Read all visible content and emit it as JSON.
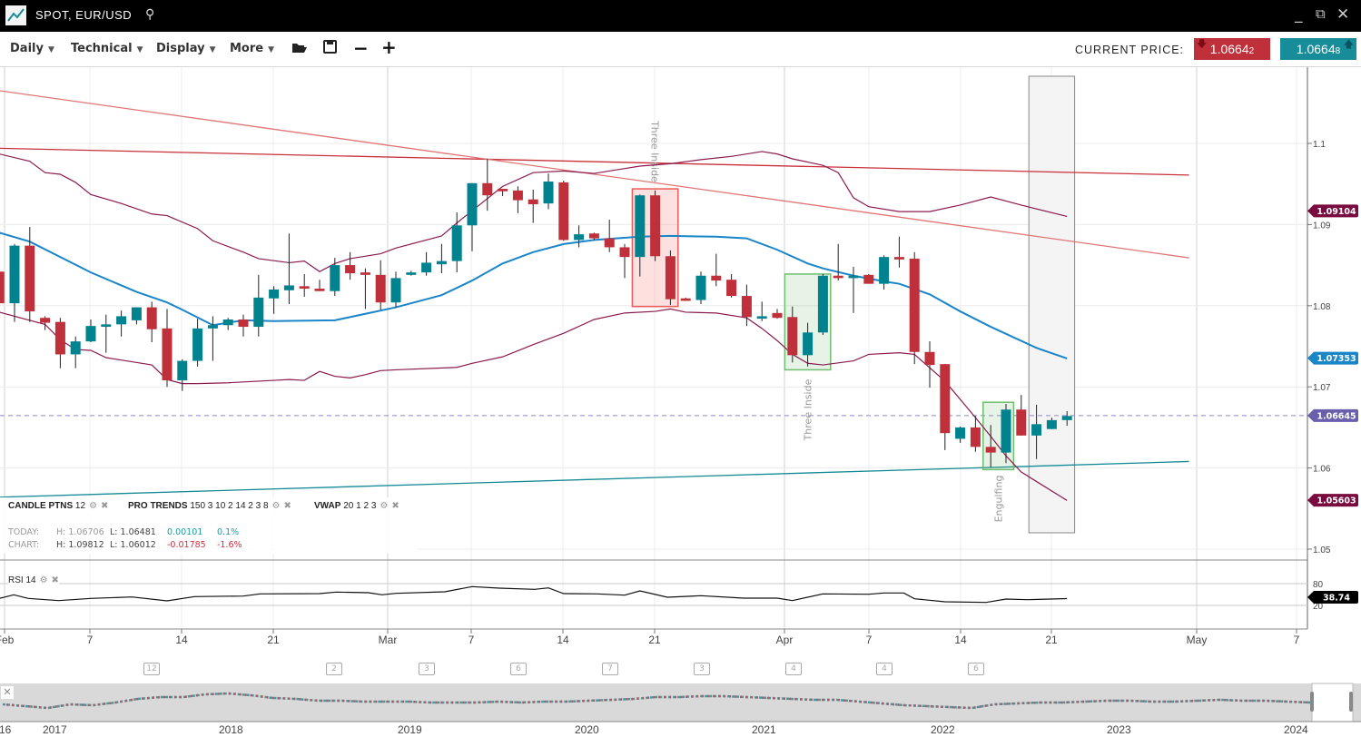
{
  "window": {
    "title": "SPOT, EUR/USD",
    "search_icon": "search-icon",
    "minimize": "_",
    "popout_icon": "popout-icon",
    "close": "✕"
  },
  "toolbar": {
    "menus": [
      "Daily",
      "Technical",
      "Display",
      "More"
    ],
    "icons": [
      "folder-open-icon",
      "save-icon",
      "zoom-out-icon",
      "zoom-in-icon"
    ],
    "current_price_label": "CURRENT PRICE:",
    "bid": "1.0664",
    "bid_pip": "2",
    "ask": "1.0664",
    "ask_pip": "8",
    "bid_color": "#c0303a",
    "ask_color": "#168d99"
  },
  "indicators": {
    "candle": {
      "name": "CANDLE PTNS",
      "params": "12"
    },
    "pro": {
      "name": "PRO TRENDS",
      "params": "150 3 10 2 14 2 3 8"
    },
    "vwap": {
      "name": "VWAP",
      "params": "20 1 2 3"
    },
    "rsi": {
      "name": "RSI",
      "params": "14"
    }
  },
  "stats": {
    "today": {
      "label": "TODAY:",
      "h": "H: 1.06706",
      "l": "L: 1.06481",
      "chg": "0.00101",
      "pct": "0.1%"
    },
    "chart": {
      "label": "CHART:",
      "h": "H: 1.09812",
      "l": "L: 1.06012",
      "chg": "-0.01785",
      "pct": "-1.6%"
    }
  },
  "chart_data": {
    "type": "candlestick",
    "symbol": "EUR/USD",
    "y_ticks": [
      "1.1",
      "1.09",
      "1.08",
      "1.07",
      "1.06",
      "1.05"
    ],
    "ylim": [
      1.0495,
      1.1117
    ],
    "x_ticks": [
      "Feb",
      "7",
      "14",
      "21",
      "Mar",
      "7",
      "14",
      "21",
      "Apr",
      "7",
      "14",
      "21",
      "May",
      "7"
    ],
    "colors": {
      "up": "#00838f",
      "down": "#c0303a",
      "vwap": "#1a85c8",
      "bands": "#8b1a4f"
    },
    "ohlc": [
      [
        1.0842,
        1.085,
        1.08,
        1.0803
      ],
      [
        1.0803,
        1.0876,
        1.078,
        1.0874
      ],
      [
        1.0874,
        1.0897,
        1.078,
        1.0793
      ],
      [
        1.0785,
        1.0787,
        1.077,
        1.0779
      ],
      [
        1.078,
        1.0785,
        1.0723,
        1.074
      ],
      [
        1.074,
        1.0762,
        1.0723,
        1.0756
      ],
      [
        1.0756,
        1.0783,
        1.0755,
        1.0775
      ],
      [
        1.0774,
        1.0789,
        1.0742,
        1.0777
      ],
      [
        1.0777,
        1.0794,
        1.0762,
        1.0787
      ],
      [
        1.0782,
        1.0798,
        1.0777,
        1.0798
      ],
      [
        1.0798,
        1.0805,
        1.0755,
        1.0771
      ],
      [
        1.0772,
        1.0796,
        1.07,
        1.0708
      ],
      [
        1.0708,
        1.0734,
        1.0695,
        1.0732
      ],
      [
        1.0732,
        1.0784,
        1.0725,
        1.0772
      ],
      [
        1.0772,
        1.0787,
        1.0732,
        1.0776
      ],
      [
        1.0776,
        1.0785,
        1.077,
        1.0783
      ],
      [
        1.0783,
        1.0789,
        1.0762,
        1.0774
      ],
      [
        1.0774,
        1.0838,
        1.0762,
        1.081
      ],
      [
        1.0809,
        1.0824,
        1.079,
        1.082
      ],
      [
        1.0819,
        1.0889,
        1.0802,
        1.0825
      ],
      [
        1.0824,
        1.0839,
        1.0811,
        1.0821
      ],
      [
        1.0821,
        1.0832,
        1.0818,
        1.0818
      ],
      [
        1.0818,
        1.0859,
        1.0812,
        1.085
      ],
      [
        1.085,
        1.0866,
        1.0832,
        1.084
      ],
      [
        1.0841,
        1.0846,
        1.0796,
        1.0838
      ],
      [
        1.0838,
        1.0856,
        1.0795,
        1.0804
      ],
      [
        1.0804,
        1.0842,
        1.0798,
        1.0834
      ],
      [
        1.0838,
        1.0843,
        1.0837,
        1.0841
      ],
      [
        1.0841,
        1.0866,
        1.0837,
        1.0853
      ],
      [
        1.0851,
        1.0876,
        1.084,
        1.0855
      ],
      [
        1.0855,
        1.0915,
        1.0841,
        1.0899
      ],
      [
        1.0899,
        1.0951,
        1.0867,
        1.0951
      ],
      [
        1.0951,
        1.0981,
        1.0917,
        1.0936
      ],
      [
        1.0944,
        1.0944,
        1.0935,
        1.0941
      ],
      [
        1.0942,
        1.0947,
        1.0914,
        1.093
      ],
      [
        1.0931,
        1.0943,
        1.0902,
        1.0925
      ],
      [
        1.0926,
        1.0963,
        1.0919,
        1.0953
      ],
      [
        1.0952,
        1.0954,
        1.088,
        1.0881
      ],
      [
        1.0881,
        1.0899,
        1.0872,
        1.0888
      ],
      [
        1.0889,
        1.089,
        1.0881,
        1.0883
      ],
      [
        1.0883,
        1.0906,
        1.0866,
        1.0872
      ],
      [
        1.0872,
        1.0876,
        1.0834,
        1.086
      ],
      [
        1.086,
        1.0937,
        1.0836,
        1.0936
      ],
      [
        1.0936,
        1.0942,
        1.0855,
        1.0861
      ],
      [
        1.0861,
        1.0868,
        1.0801,
        1.0808
      ],
      [
        1.0809,
        1.081,
        1.0806,
        1.0806
      ],
      [
        1.0807,
        1.0842,
        1.0802,
        1.0837
      ],
      [
        1.0837,
        1.0864,
        1.0824,
        1.0831
      ],
      [
        1.0832,
        1.0839,
        1.081,
        1.0812
      ],
      [
        1.0812,
        1.0826,
        1.0775,
        1.0786
      ],
      [
        1.0784,
        1.0805,
        1.0781,
        1.0787
      ],
      [
        1.0791,
        1.0796,
        1.0784,
        1.0785
      ],
      [
        1.0786,
        1.0799,
        1.073,
        1.0739
      ],
      [
        1.0739,
        1.0779,
        1.0725,
        1.0767
      ],
      [
        1.0767,
        1.0839,
        1.0764,
        1.0837
      ],
      [
        1.0837,
        1.0876,
        1.0831,
        1.0834
      ],
      [
        1.0834,
        1.0848,
        1.0791,
        1.0837
      ],
      [
        1.0838,
        1.0839,
        1.0827,
        1.0827
      ],
      [
        1.0827,
        1.0862,
        1.082,
        1.086
      ],
      [
        1.086,
        1.0885,
        1.0847,
        1.0857
      ],
      [
        1.0858,
        1.0866,
        1.0728,
        1.0743
      ],
      [
        1.0743,
        1.0756,
        1.0699,
        1.0727
      ],
      [
        1.0728,
        1.0728,
        1.0622,
        1.0643
      ],
      [
        1.0636,
        1.0651,
        1.0631,
        1.065
      ],
      [
        1.065,
        1.0664,
        1.062,
        1.0626
      ],
      [
        1.0626,
        1.0653,
        1.0601,
        1.0619
      ],
      [
        1.0619,
        1.0679,
        1.0606,
        1.0672
      ],
      [
        1.0672,
        1.069,
        1.064,
        1.064
      ],
      [
        1.064,
        1.0678,
        1.0611,
        1.0654
      ],
      [
        1.0648,
        1.0662,
        1.0648,
        1.0659
      ],
      [
        1.0659,
        1.067,
        1.0652,
        1.0664
      ]
    ],
    "vwap": [
      [
        0,
        1.089
      ],
      [
        2,
        1.0879
      ],
      [
        6,
        1.0841
      ],
      [
        9,
        1.0817
      ],
      [
        11,
        1.0804
      ],
      [
        12,
        1.0795
      ],
      [
        14,
        1.0776
      ],
      [
        16,
        1.0782
      ],
      [
        18,
        1.0781
      ],
      [
        22,
        1.0782
      ],
      [
        24,
        1.079
      ],
      [
        26,
        1.0798
      ],
      [
        29,
        1.0813
      ],
      [
        31,
        1.0831
      ],
      [
        33,
        1.0852
      ],
      [
        35,
        1.0866
      ],
      [
        37,
        1.0876
      ],
      [
        39,
        1.0881
      ],
      [
        42,
        1.0885
      ],
      [
        44,
        1.0886
      ],
      [
        47,
        1.0885
      ],
      [
        49,
        1.0883
      ],
      [
        51,
        1.0869
      ],
      [
        53,
        1.0852
      ],
      [
        54,
        1.0846
      ],
      [
        56,
        1.0837
      ],
      [
        58,
        1.083
      ],
      [
        59,
        1.0827
      ],
      [
        61,
        1.0814
      ],
      [
        63,
        1.0793
      ],
      [
        65,
        1.0774
      ],
      [
        68,
        1.0748
      ],
      [
        70,
        1.0735
      ]
    ],
    "upper_band": [
      [
        0,
        1.0987
      ],
      [
        2,
        1.0978
      ],
      [
        3,
        1.0964
      ],
      [
        4,
        1.0962
      ],
      [
        5,
        1.0952
      ],
      [
        6,
        1.0937
      ],
      [
        8,
        1.0926
      ],
      [
        10,
        1.0913
      ],
      [
        11,
        1.0911
      ],
      [
        13,
        1.0895
      ],
      [
        14,
        1.088
      ],
      [
        16,
        1.0866
      ],
      [
        17,
        1.0858
      ],
      [
        19,
        1.0853
      ],
      [
        20,
        1.0855
      ],
      [
        21,
        1.0842
      ],
      [
        22,
        1.0852
      ],
      [
        23,
        1.0858
      ],
      [
        25,
        1.0864
      ],
      [
        26,
        1.0871
      ],
      [
        29,
        1.0886
      ],
      [
        30,
        1.0902
      ],
      [
        31,
        1.0917
      ],
      [
        33,
        1.0947
      ],
      [
        35,
        1.0964
      ],
      [
        37,
        1.0966
      ],
      [
        39,
        1.0963
      ],
      [
        41,
        1.0969
      ],
      [
        42,
        1.0972
      ],
      [
        44,
        1.0975
      ],
      [
        46,
        1.098
      ],
      [
        48,
        1.0984
      ],
      [
        50,
        1.099
      ],
      [
        51,
        1.0987
      ],
      [
        52,
        1.0981
      ],
      [
        54,
        1.0973
      ],
      [
        55,
        1.0964
      ],
      [
        56,
        1.0933
      ],
      [
        57,
        1.0922
      ],
      [
        59,
        1.0916
      ],
      [
        61,
        1.0916
      ],
      [
        63,
        1.0924
      ],
      [
        65,
        1.0934
      ],
      [
        67,
        1.0924
      ],
      [
        70,
        1.091
      ]
    ],
    "lower_band": [
      [
        0,
        1.0792
      ],
      [
        3,
        1.0777
      ],
      [
        4,
        1.0758
      ],
      [
        5,
        1.0746
      ],
      [
        6,
        1.0745
      ],
      [
        7,
        1.0736
      ],
      [
        8,
        1.0733
      ],
      [
        10,
        1.0727
      ],
      [
        11,
        1.0709
      ],
      [
        12,
        1.0704
      ],
      [
        13,
        1.0704
      ],
      [
        15,
        1.0705
      ],
      [
        18,
        1.0708
      ],
      [
        19,
        1.0709
      ],
      [
        20,
        1.0708
      ],
      [
        21,
        1.0719
      ],
      [
        22,
        1.0713
      ],
      [
        23,
        1.0711
      ],
      [
        24,
        1.0715
      ],
      [
        25,
        1.072
      ],
      [
        26,
        1.0721
      ],
      [
        30,
        1.0724
      ],
      [
        31,
        1.0729
      ],
      [
        33,
        1.0737
      ],
      [
        35,
        1.0752
      ],
      [
        37,
        1.0766
      ],
      [
        39,
        1.0783
      ],
      [
        41,
        1.0791
      ],
      [
        43,
        1.0793
      ],
      [
        44,
        1.0796
      ],
      [
        45,
        1.0792
      ],
      [
        47,
        1.0791
      ],
      [
        49,
        1.0785
      ],
      [
        50,
        1.0772
      ],
      [
        51,
        1.0757
      ],
      [
        52,
        1.074
      ],
      [
        53,
        1.0729
      ],
      [
        54,
        1.0727
      ],
      [
        56,
        1.0732
      ],
      [
        57,
        1.074
      ],
      [
        59,
        1.0742
      ],
      [
        60,
        1.074
      ],
      [
        62,
        1.0707
      ],
      [
        64,
        1.0662
      ],
      [
        65,
        1.0639
      ],
      [
        66,
        1.0615
      ],
      [
        67,
        1.0595
      ],
      [
        70,
        1.056
      ]
    ],
    "trend_lines": [
      {
        "from": [
          0,
          1.0994
        ],
        "to": [
          78,
          1.0961
        ],
        "color": "#c8303a"
      },
      {
        "from": [
          0,
          1.1065
        ],
        "to": [
          78,
          1.0859
        ],
        "color": "#e07575"
      },
      {
        "from": [
          0,
          1.0564
        ],
        "to": [
          78,
          1.0608
        ],
        "color": "#138a94"
      }
    ],
    "patterns": [
      {
        "label": "Three Inside",
        "from": 42,
        "to": 44,
        "top": 1.0944,
        "bottom": 1.0799,
        "type": "bearish",
        "color": "#f05a5a"
      },
      {
        "label": "Three Inside",
        "from": 52,
        "to": 54,
        "top": 1.0839,
        "bottom": 1.0721,
        "type": "bullish",
        "color": "#6cbf6c"
      },
      {
        "label": "Engulfing",
        "from": 65,
        "to": 66,
        "top": 1.0681,
        "bottom": 1.0598,
        "type": "bullish",
        "color": "#6cbf6c"
      }
    ],
    "shaded_range": [
      68,
      70
    ],
    "current_line": 1.06645,
    "price_flags": [
      {
        "value": "1.09104",
        "price": 1.09104,
        "color": "#7a0b3e"
      },
      {
        "value": "1.07353",
        "price": 1.07353,
        "color": "#1a85c8"
      },
      {
        "value": "1.06645",
        "price": 1.06645,
        "color": "#6a5fad"
      },
      {
        "value": "1.05603",
        "price": 1.05603,
        "color": "#7a0b3e"
      }
    ],
    "rsi": {
      "ticks": [
        "80",
        "20"
      ],
      "value": "38.74",
      "points": [
        [
          0,
          39.2
        ],
        [
          0.95,
          49.2
        ],
        [
          1.9,
          39.2
        ],
        [
          3.9,
          33.3
        ],
        [
          6,
          39.2
        ],
        [
          8.7,
          43.3
        ],
        [
          11,
          32.5
        ],
        [
          12.8,
          44.2
        ],
        [
          16,
          45.8
        ],
        [
          17.1,
          51.7
        ],
        [
          21,
          52.5
        ],
        [
          22.1,
          56.7
        ],
        [
          24.2,
          55
        ],
        [
          25.1,
          49.2
        ],
        [
          26,
          53.3
        ],
        [
          29.2,
          57.5
        ],
        [
          31,
          71.7
        ],
        [
          32.8,
          67.5
        ],
        [
          35.1,
          64.2
        ],
        [
          36,
          68.3
        ],
        [
          37,
          52.5
        ],
        [
          39.2,
          51.7
        ],
        [
          41,
          48.3
        ],
        [
          42,
          60
        ],
        [
          43.8,
          42.5
        ],
        [
          46,
          46.7
        ],
        [
          48.8,
          40
        ],
        [
          51,
          40
        ],
        [
          52,
          33.3
        ],
        [
          54,
          51.7
        ],
        [
          57,
          50.8
        ],
        [
          58,
          54.2
        ],
        [
          59.3,
          54.2
        ],
        [
          60,
          38.3
        ],
        [
          62,
          30
        ],
        [
          64.7,
          28.3
        ],
        [
          66,
          37.5
        ],
        [
          67.4,
          35.8
        ],
        [
          70,
          38.74
        ]
      ]
    }
  },
  "events": [
    "12",
    "2",
    "3",
    "6",
    "7",
    "3",
    "4",
    "4",
    "6"
  ],
  "navigator": {
    "years": [
      "16",
      "2017",
      "2018",
      "2019",
      "2020",
      "2021",
      "2022",
      "2023",
      "2024"
    ],
    "close": "✕"
  }
}
